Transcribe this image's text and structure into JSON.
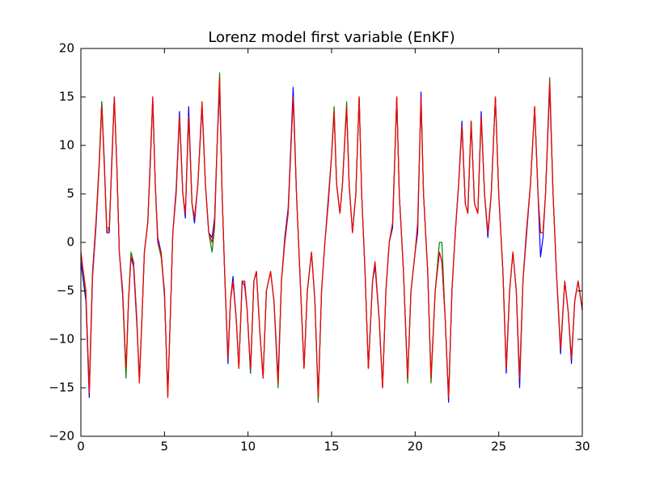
{
  "chart_data": {
    "type": "line",
    "title": "Lorenz model first variable (EnKF)",
    "x": [
      0,
      0.3,
      0.5,
      0.7,
      0.9,
      1.1,
      1.25,
      1.4,
      1.55,
      1.7,
      1.85,
      2.0,
      2.15,
      2.3,
      2.5,
      2.7,
      2.85,
      3.0,
      3.15,
      3.35,
      3.5,
      3.65,
      3.8,
      4.0,
      4.15,
      4.3,
      4.45,
      4.6,
      4.8,
      5.0,
      5.2,
      5.4,
      5.5,
      5.7,
      5.9,
      6.1,
      6.25,
      6.45,
      6.65,
      6.8,
      7.0,
      7.25,
      7.45,
      7.65,
      7.85,
      8.0,
      8.15,
      8.3,
      8.45,
      8.6,
      8.8,
      8.95,
      9.1,
      9.3,
      9.45,
      9.65,
      9.8,
      9.95,
      10.15,
      10.35,
      10.5,
      10.7,
      10.9,
      11.1,
      11.35,
      11.55,
      11.8,
      12.0,
      12.2,
      12.4,
      12.55,
      12.7,
      12.9,
      13.1,
      13.35,
      13.55,
      13.8,
      14.0,
      14.2,
      14.4,
      14.6,
      14.8,
      15.0,
      15.15,
      15.3,
      15.5,
      15.65,
      15.9,
      16.05,
      16.25,
      16.45,
      16.65,
      16.8,
      17.0,
      17.2,
      17.45,
      17.6,
      17.85,
      18.05,
      18.25,
      18.45,
      18.65,
      18.9,
      19.05,
      19.3,
      19.55,
      19.75,
      20.0,
      20.15,
      20.35,
      20.5,
      20.75,
      20.95,
      21.2,
      21.45,
      21.6,
      21.8,
      22.0,
      22.2,
      22.4,
      22.6,
      22.8,
      23.0,
      23.15,
      23.35,
      23.55,
      23.75,
      23.95,
      24.15,
      24.35,
      24.55,
      24.8,
      25.0,
      25.25,
      25.45,
      25.65,
      25.85,
      26.05,
      26.25,
      26.45,
      26.65,
      26.9,
      27.15,
      27.35,
      27.5,
      27.65,
      27.8,
      28.05,
      28.25,
      28.45,
      28.7,
      28.95,
      29.15,
      29.35,
      29.55,
      29.75,
      30
    ],
    "series": [
      {
        "color": "#0000ff",
        "values": [
          -2,
          -6,
          -16,
          -3.5,
          1.5,
          8,
          14.5,
          8.5,
          1,
          1,
          8.5,
          15,
          8,
          -1,
          -5.5,
          -13.5,
          -6,
          -1.5,
          -2.5,
          -8.5,
          -14,
          -8,
          -1,
          2,
          8.5,
          15,
          6,
          0.5,
          -1,
          -5.5,
          -15.5,
          -5,
          1,
          5.5,
          13.5,
          5,
          2.5,
          14,
          4,
          2,
          6,
          14,
          6,
          1,
          0.5,
          2.5,
          10,
          16,
          5,
          -3,
          -12.5,
          -6,
          -3.5,
          -8,
          -13,
          -4,
          -4.5,
          -7,
          -13.5,
          -4,
          -3,
          -9,
          -14,
          -5,
          -3,
          -6,
          -14,
          -4,
          0.5,
          3.5,
          9.5,
          16,
          5,
          -3,
          -13,
          -5,
          -1,
          -6,
          -16,
          -5,
          0,
          4.5,
          9,
          13.5,
          6,
          3,
          6,
          14,
          6,
          1,
          5,
          15,
          5,
          -3,
          -13,
          -4,
          -2.5,
          -8,
          -15,
          -5,
          0,
          1.5,
          15,
          5,
          -3,
          -14,
          -5,
          -1,
          1,
          15.5,
          5,
          -3,
          -14,
          -5,
          -1,
          -2,
          -8,
          -16.5,
          -5,
          1,
          6,
          12.5,
          4,
          3,
          12.5,
          4,
          3,
          13.5,
          5,
          0.5,
          5,
          15,
          5,
          -3,
          -13.5,
          -5,
          -1,
          -5,
          -15,
          -4,
          0.5,
          6,
          14,
          5,
          -1.5,
          0.5,
          5,
          16,
          5,
          -3,
          -11.5,
          -4,
          -7,
          -12.5,
          -6,
          -4,
          -7
        ]
      },
      {
        "color": "#008000",
        "values": [
          -1,
          -5.5,
          -15,
          -3,
          2,
          8.5,
          14.5,
          8,
          1.5,
          1.5,
          8,
          15,
          8,
          -1,
          -5,
          -14,
          -6,
          -1,
          -2,
          -8,
          -14.5,
          -8,
          -1,
          2,
          8,
          14.5,
          6,
          0,
          -1.5,
          -5,
          -16,
          -5,
          1,
          5,
          13,
          5,
          3,
          13,
          4,
          2.5,
          6,
          14.5,
          6,
          1,
          -1,
          1.5,
          10,
          17.5,
          5,
          -3,
          -12,
          -6,
          -4,
          -8,
          -13,
          -4,
          -4,
          -7,
          -13.5,
          -4,
          -3,
          -9,
          -14,
          -5,
          -3,
          -6,
          -15,
          -4,
          0,
          3,
          9,
          15,
          5,
          -3,
          -13,
          -5,
          -1,
          -6,
          -16.5,
          -5,
          0,
          4,
          9,
          14,
          6,
          3,
          6,
          14.5,
          6,
          1,
          5,
          15,
          5,
          -3,
          -13,
          -4,
          -2,
          -8,
          -15,
          -5,
          0,
          2,
          15,
          5,
          -3,
          -14.5,
          -5,
          -1,
          2,
          14.5,
          5,
          -3,
          -14.5,
          -5,
          0,
          0,
          -8,
          -16,
          -5,
          1,
          6,
          12,
          4,
          3,
          12.5,
          4,
          3,
          13,
          5,
          1,
          5,
          15,
          5,
          -3,
          -13,
          -5,
          -1,
          -5,
          -14,
          -4,
          1,
          6,
          14,
          5,
          1,
          1,
          5,
          17,
          5,
          -3,
          -11,
          -4,
          -7,
          -12,
          -6,
          -4,
          -7
        ]
      },
      {
        "color": "#ff0000",
        "values": [
          -1,
          -5,
          -15.5,
          -3,
          2,
          8,
          14,
          8,
          1,
          1.5,
          8,
          15,
          8,
          -1,
          -5,
          -13,
          -6,
          -1.5,
          -2,
          -8,
          -14.5,
          -8,
          -1,
          2,
          8,
          15,
          6,
          0,
          -1,
          -5,
          -16,
          -5,
          1,
          5,
          13,
          5,
          3,
          13,
          4,
          2.5,
          6,
          14.5,
          6,
          1,
          0,
          2,
          10,
          17,
          5,
          -3,
          -12,
          -6,
          -4,
          -8,
          -13,
          -4,
          -4,
          -7,
          -13,
          -4,
          -3,
          -9,
          -14,
          -5,
          -3,
          -6,
          -14.5,
          -4,
          0,
          3,
          9,
          15,
          5,
          -3,
          -13,
          -5,
          -1,
          -6,
          -16,
          -5,
          0,
          4,
          9,
          13.5,
          6,
          3,
          6,
          14,
          6,
          1,
          5,
          15,
          5,
          -3,
          -13,
          -4,
          -2,
          -8,
          -15,
          -5,
          0,
          2,
          15,
          5,
          -3,
          -14,
          -5,
          -1,
          2,
          15,
          5,
          -3,
          -14,
          -5,
          -1,
          -2,
          -8,
          -16,
          -5,
          1,
          6,
          12,
          4,
          3,
          12.5,
          4,
          3,
          13,
          5,
          1,
          5,
          15,
          5,
          -3,
          -13,
          -5,
          -1,
          -5,
          -14,
          -4,
          1,
          6,
          14,
          5,
          1,
          1,
          5,
          16.5,
          5,
          -3,
          -11,
          -4,
          -7,
          -12,
          -6,
          -4,
          -7
        ]
      }
    ],
    "xlim": [
      0,
      30
    ],
    "xticks": [
      0,
      5,
      10,
      15,
      20,
      25,
      30
    ],
    "ylim": [
      -20,
      20
    ],
    "yticks": [
      {
        "value": -20,
        "label": "−20"
      },
      {
        "value": -15,
        "label": "−15"
      },
      {
        "value": -10,
        "label": "−10"
      },
      {
        "value": -5,
        "label": "−5"
      },
      0,
      5,
      10,
      15,
      20
    ]
  }
}
